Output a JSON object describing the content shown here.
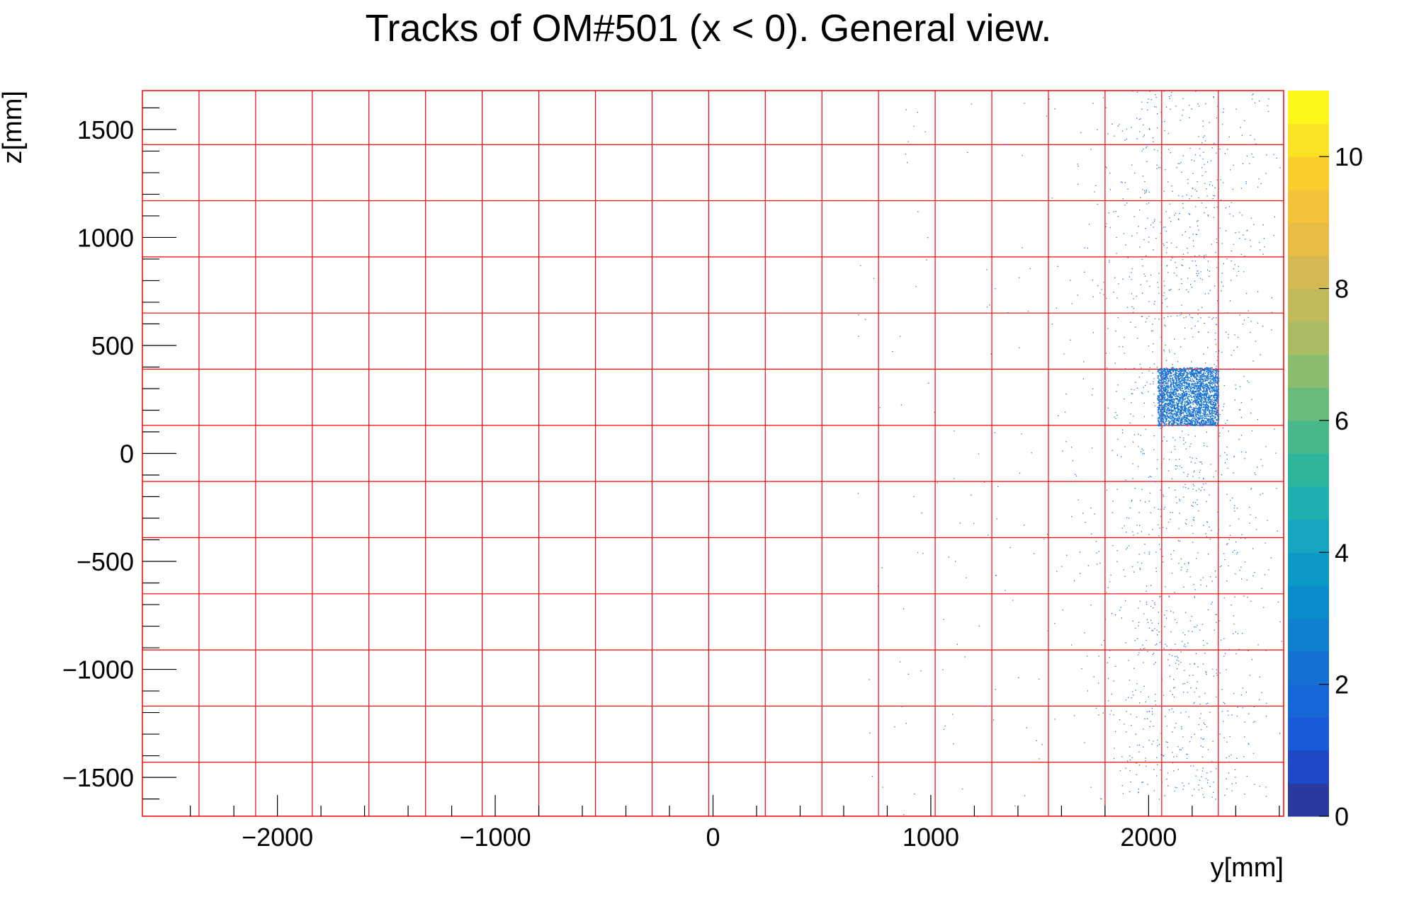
{
  "chart_data": {
    "type": "heatmap",
    "title": "Tracks of OM#501 (x < 0). General view.",
    "xlabel": "y[mm]",
    "ylabel": "z[mm]",
    "xlim": [
      -2620,
      2620
    ],
    "ylim": [
      -1680,
      1680
    ],
    "x_ticks": [
      -2000,
      -1000,
      0,
      1000,
      2000
    ],
    "x_tick_labels": [
      "−2000",
      "−1000",
      "0",
      "1000",
      "2000"
    ],
    "y_ticks": [
      -1500,
      -1000,
      -500,
      0,
      500,
      1000,
      1500
    ],
    "y_tick_labels": [
      "−1500",
      "−1000",
      "−500",
      "0",
      "500",
      "1000",
      "1500"
    ],
    "colorbar": {
      "range": [
        0,
        11
      ],
      "ticks": [
        0,
        2,
        4,
        6,
        8,
        10
      ],
      "tick_labels": [
        "0",
        "2",
        "4",
        "6",
        "8",
        "10"
      ]
    },
    "grid": {
      "color": "#ff0000",
      "y_lines": [
        -2360,
        -2100,
        -1840,
        -1580,
        -1320,
        -1060,
        -800,
        -540,
        -280,
        -20,
        240,
        500,
        760,
        1020,
        1280,
        1540,
        1800,
        2060,
        2320
      ],
      "z_lines": [
        -1430,
        -1170,
        -910,
        -650,
        -390,
        -130,
        130,
        390,
        650,
        910,
        1170,
        1430
      ]
    },
    "dense_region": {
      "y": [
        2040,
        2320
      ],
      "z": [
        130,
        400
      ],
      "level": 3
    },
    "diffuse_region": {
      "y_center": 2150,
      "y_spread": 210,
      "z": [
        -1600,
        1680
      ],
      "level": 1
    }
  }
}
